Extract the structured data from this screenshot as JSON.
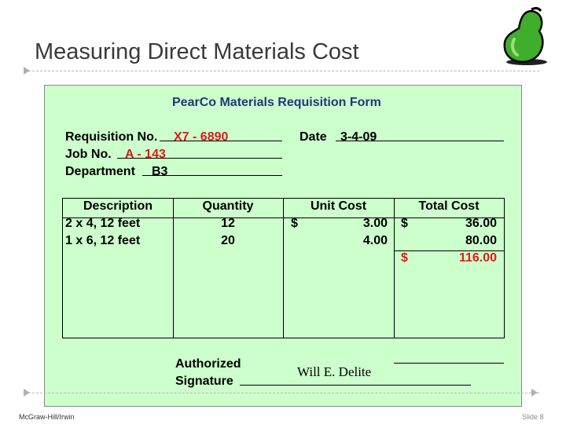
{
  "slide": {
    "title": "Measuring Direct Materials Cost",
    "footer_left": "McGraw-Hill/Irwin",
    "footer_right": "Slide 8"
  },
  "form": {
    "heading": "PearCo Materials Requisition Form",
    "requisition_label": "Requisition No.",
    "requisition_value": "X7 - 6890",
    "date_label": "Date",
    "date_value": "3-4-09",
    "job_label": "Job No.",
    "job_value": "A - 143",
    "department_label": "Department",
    "department_value": "B3",
    "columns": [
      "Description",
      "Quantity",
      "Unit Cost",
      "Total Cost"
    ],
    "rows": [
      {
        "description": "2 x 4, 12 feet",
        "quantity": "12",
        "unit_currency": "$",
        "unit_cost": "3.00",
        "total_currency": "$",
        "total_cost": "36.00"
      },
      {
        "description": "1 x 6, 12 feet",
        "quantity": "20",
        "unit_currency": "",
        "unit_cost": "4.00",
        "total_currency": "",
        "total_cost": "80.00"
      }
    ],
    "grand_total_currency": "$",
    "grand_total": "116.00",
    "authorized_label_1": "Authorized",
    "authorized_label_2": "Signature",
    "signature": "Will E. Delite"
  },
  "colors": {
    "form_background": "#ccffcc",
    "heading": "#1f3a7a",
    "highlight_red": "#e01a1a"
  },
  "icons": [
    "pear-logo-icon",
    "bullet-triangle-icon"
  ]
}
